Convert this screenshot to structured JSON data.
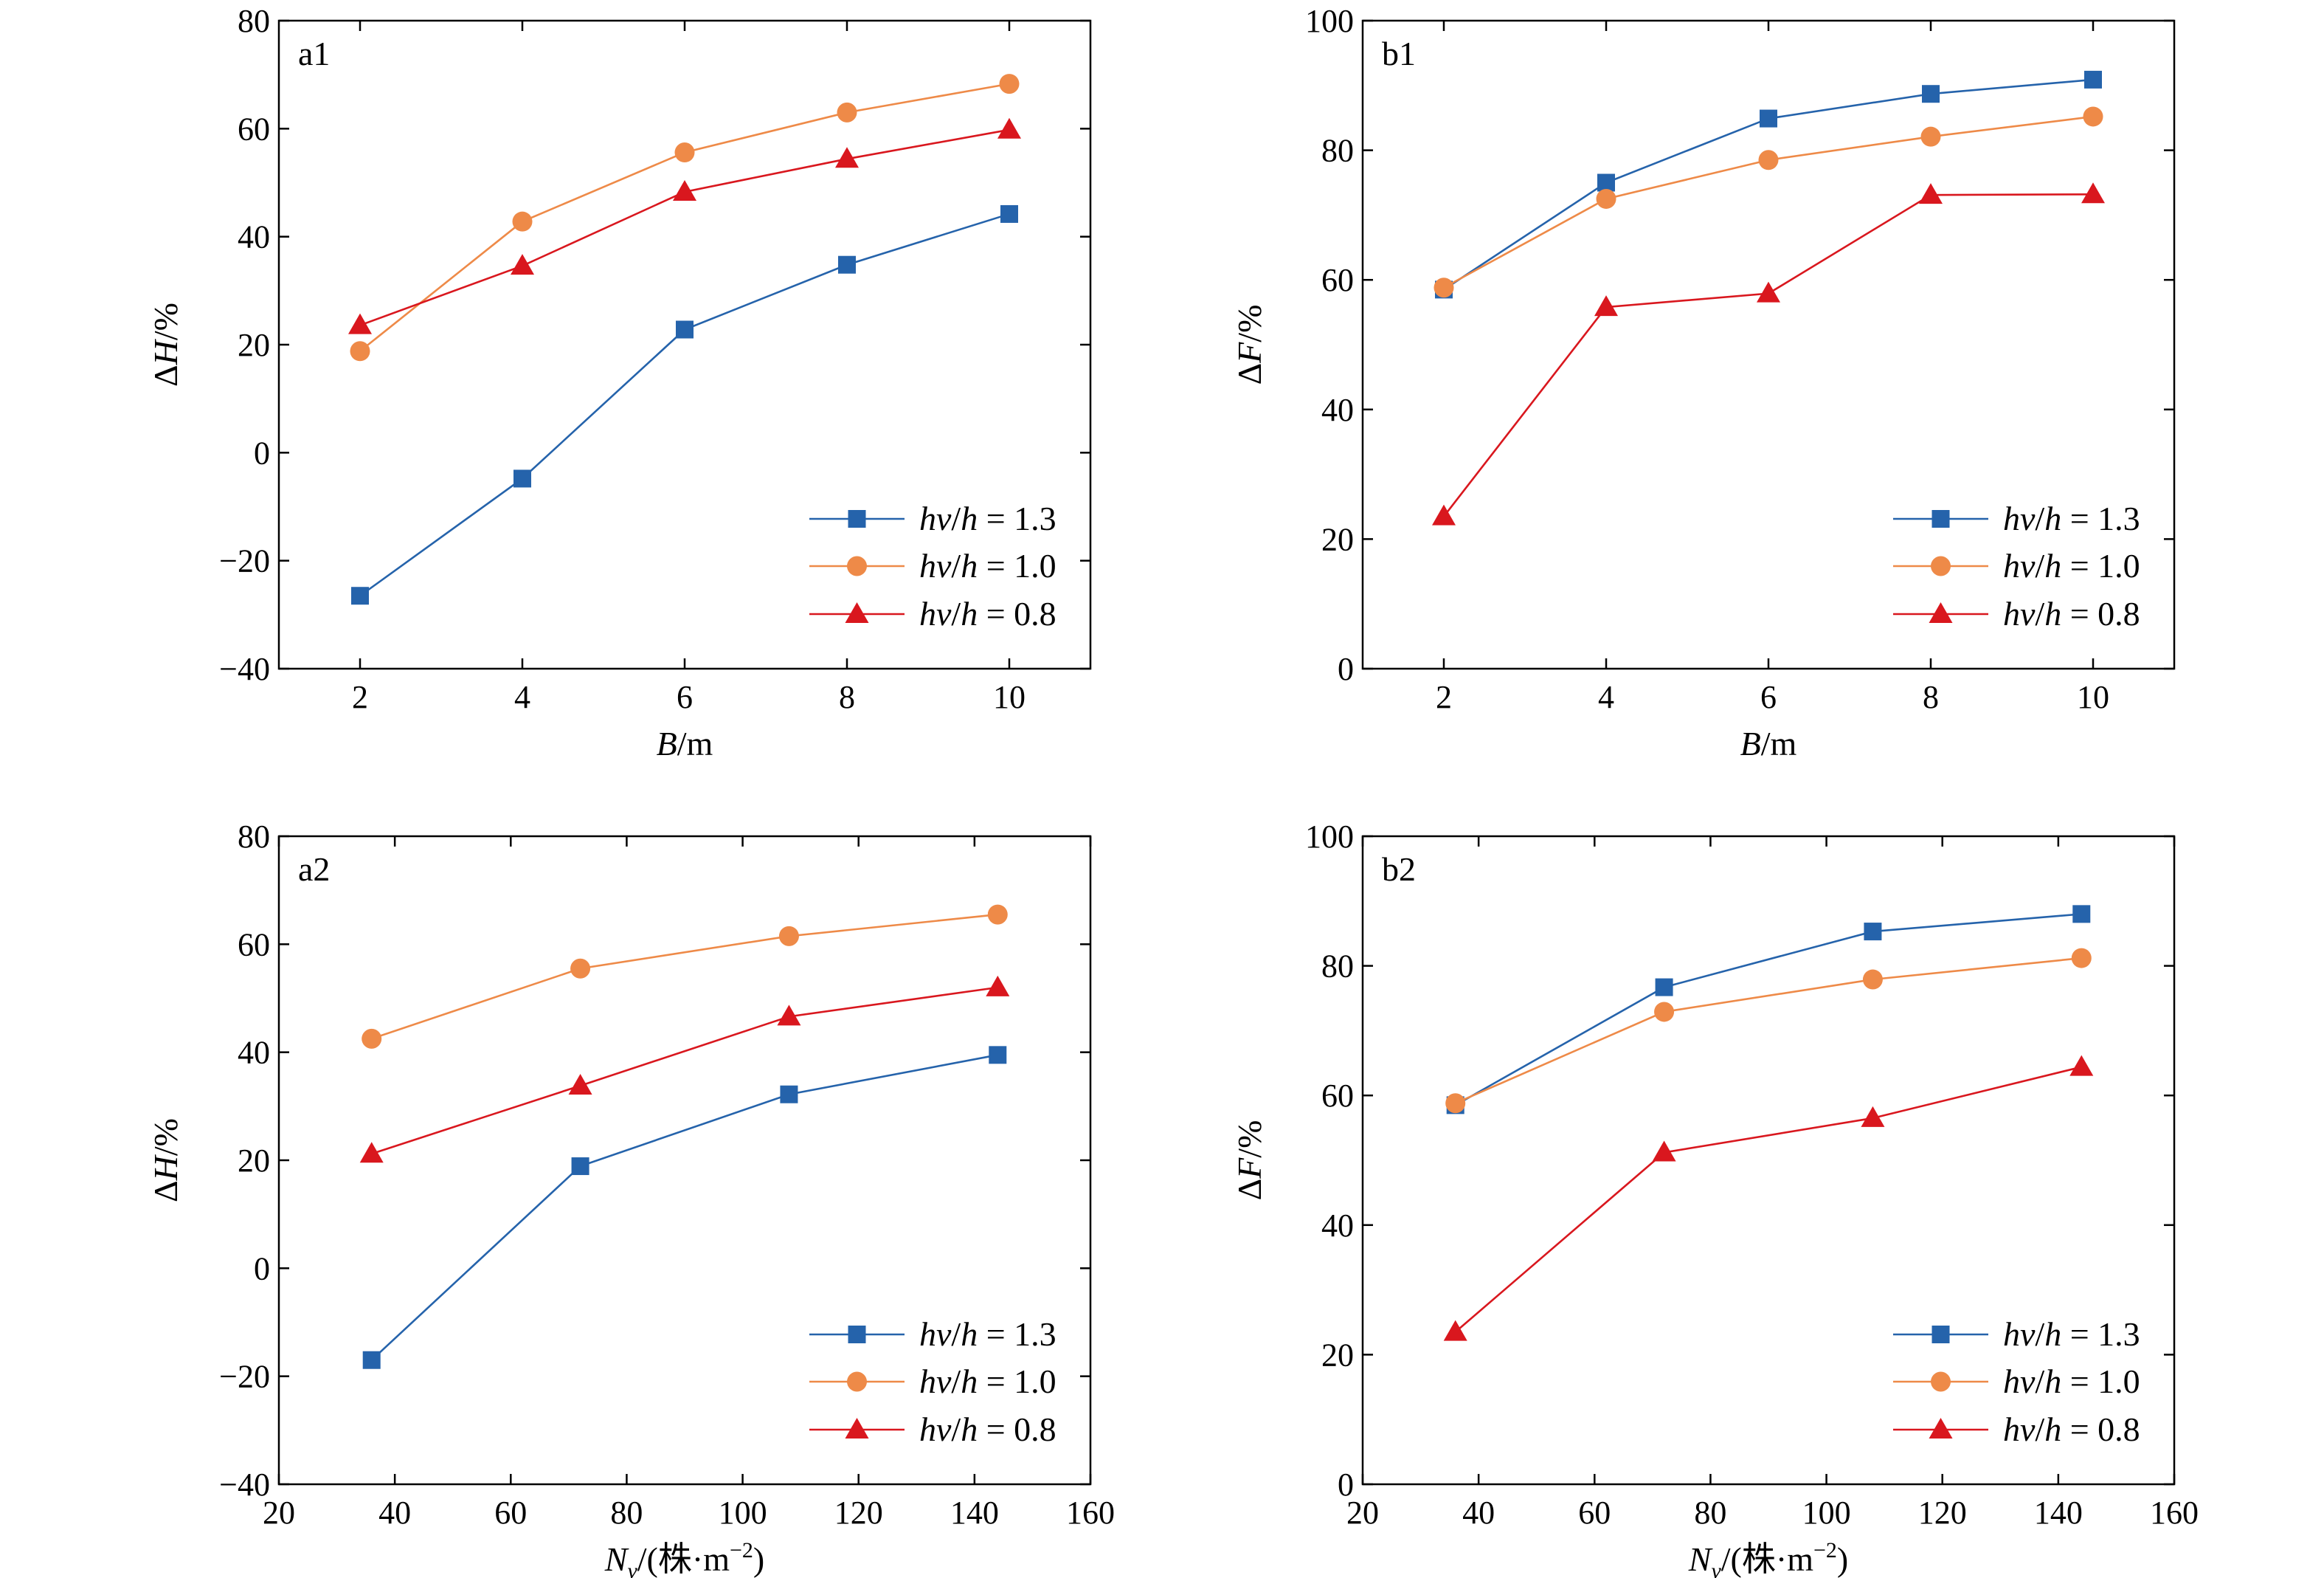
{
  "figure": {
    "series_styles": [
      {
        "marker": "square",
        "color": "#2563AB"
      },
      {
        "marker": "circle",
        "color": "#EE8A48"
      },
      {
        "marker": "triangle",
        "color": "#D9171E"
      }
    ]
  },
  "chart_data": [
    {
      "panel": "a1",
      "type": "line",
      "xlabel_italic": "B",
      "xlabel_rest": "/m",
      "ylabel_prefix": "Δ",
      "ylabel_italic": "H",
      "ylabel_rest": "/%",
      "xlim": [
        1,
        11
      ],
      "ylim": [
        -40,
        80
      ],
      "xticks": [
        2,
        4,
        6,
        8,
        10
      ],
      "yticks": [
        -40,
        -20,
        0,
        20,
        40,
        60,
        80
      ],
      "x": [
        2,
        4,
        6,
        8,
        10
      ],
      "series": [
        {
          "name": "hv/h = 1.3",
          "values": [
            -26.5,
            -4.8,
            22.8,
            34.8,
            44.2
          ]
        },
        {
          "name": "hv/h = 1.0",
          "values": [
            18.8,
            42.8,
            55.6,
            63.0,
            68.3
          ]
        },
        {
          "name": "hv/h = 0.8",
          "values": [
            23.6,
            34.6,
            48.3,
            54.4,
            59.8
          ]
        }
      ],
      "legend": "lower-right"
    },
    {
      "panel": "b1",
      "type": "line",
      "xlabel_italic": "B",
      "xlabel_rest": "/m",
      "ylabel_prefix": "Δ",
      "ylabel_italic": "F",
      "ylabel_rest": "/%",
      "xlim": [
        1,
        11
      ],
      "ylim": [
        0,
        100
      ],
      "xticks": [
        2,
        4,
        6,
        8,
        10
      ],
      "yticks": [
        0,
        20,
        40,
        60,
        80,
        100
      ],
      "x": [
        2,
        4,
        6,
        8,
        10
      ],
      "series": [
        {
          "name": "hv/h = 1.3",
          "values": [
            58.5,
            75.0,
            84.9,
            88.7,
            90.9
          ]
        },
        {
          "name": "hv/h = 1.0",
          "values": [
            58.8,
            72.5,
            78.5,
            82.1,
            85.2
          ]
        },
        {
          "name": "hv/h = 0.8",
          "values": [
            23.5,
            55.8,
            57.9,
            73.1,
            73.2
          ]
        }
      ],
      "legend": "lower-right"
    },
    {
      "panel": "a2",
      "type": "line",
      "xlabel_italic": "N",
      "xlabel_sub": "v",
      "xlabel_rest": "/(株·m",
      "xlabel_sup": "−2",
      "xlabel_close": ")",
      "ylabel_prefix": "Δ",
      "ylabel_italic": "H",
      "ylabel_rest": "/%",
      "xlim": [
        20,
        160
      ],
      "ylim": [
        -40,
        80
      ],
      "xticks": [
        20,
        40,
        60,
        80,
        100,
        120,
        140,
        160
      ],
      "yticks": [
        -40,
        -20,
        0,
        20,
        40,
        60,
        80
      ],
      "x": [
        36,
        72,
        108,
        144
      ],
      "series": [
        {
          "name": "hv/h = 1.3",
          "values": [
            -17.0,
            18.9,
            32.2,
            39.5
          ]
        },
        {
          "name": "hv/h = 1.0",
          "values": [
            42.5,
            55.5,
            61.5,
            65.5
          ]
        },
        {
          "name": "hv/h = 0.8",
          "values": [
            21.2,
            33.8,
            46.6,
            52.0
          ]
        }
      ],
      "legend": "lower-right"
    },
    {
      "panel": "b2",
      "type": "line",
      "xlabel_italic": "N",
      "xlabel_sub": "v",
      "xlabel_rest": "/(株·m",
      "xlabel_sup": "−2",
      "xlabel_close": ")",
      "ylabel_prefix": "Δ",
      "ylabel_italic": "F",
      "ylabel_rest": "/%",
      "xlim": [
        20,
        160
      ],
      "ylim": [
        0,
        100
      ],
      "xticks": [
        20,
        40,
        60,
        80,
        100,
        120,
        140,
        160
      ],
      "yticks": [
        0,
        20,
        40,
        60,
        80,
        100
      ],
      "x": [
        36,
        72,
        108,
        144
      ],
      "series": [
        {
          "name": "hv/h = 1.3",
          "values": [
            58.5,
            76.7,
            85.3,
            88.0
          ]
        },
        {
          "name": "hv/h = 1.0",
          "values": [
            58.8,
            72.9,
            77.9,
            81.2
          ]
        },
        {
          "name": "hv/h = 0.8",
          "values": [
            23.5,
            51.2,
            56.5,
            64.4
          ]
        }
      ],
      "legend": "lower-right"
    }
  ]
}
